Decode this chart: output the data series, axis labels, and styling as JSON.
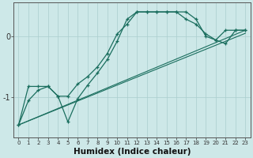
{
  "xlabel": "Humidex (Indice chaleur)",
  "bg_color": "#cde8e8",
  "grid_color": "#aacece",
  "line_color": "#1a6e5e",
  "x_values": [
    0,
    1,
    2,
    3,
    4,
    5,
    6,
    7,
    8,
    9,
    10,
    11,
    12,
    13,
    14,
    15,
    16,
    17,
    18,
    19,
    20,
    21,
    22,
    23
  ],
  "line1": [
    -1.45,
    -1.05,
    -0.88,
    -0.82,
    -0.98,
    -1.4,
    -1.02,
    -0.8,
    -0.6,
    -0.38,
    -0.08,
    0.28,
    0.4,
    0.4,
    0.4,
    0.4,
    0.4,
    0.28,
    0.2,
    0.04,
    -0.06,
    -0.12,
    0.1,
    0.1
  ],
  "line2": [
    -1.45,
    -0.82,
    -0.82,
    -0.82,
    -0.98,
    -0.98,
    -0.78,
    -0.66,
    -0.5,
    -0.28,
    0.04,
    0.2,
    0.4,
    0.4,
    0.4,
    0.4,
    0.4,
    0.4,
    0.28,
    0.0,
    -0.06,
    0.1,
    0.1,
    0.1
  ],
  "line3_x": [
    0,
    23
  ],
  "line3_y": [
    -1.45,
    0.1
  ],
  "line4_x": [
    0,
    23
  ],
  "line4_y": [
    -1.45,
    0.05
  ],
  "ylim": [
    -1.65,
    0.55
  ],
  "yticks": [
    0,
    -1
  ],
  "xticks": [
    0,
    1,
    2,
    3,
    4,
    5,
    6,
    7,
    8,
    9,
    10,
    11,
    12,
    13,
    14,
    15,
    16,
    17,
    18,
    19,
    20,
    21,
    22,
    23
  ]
}
